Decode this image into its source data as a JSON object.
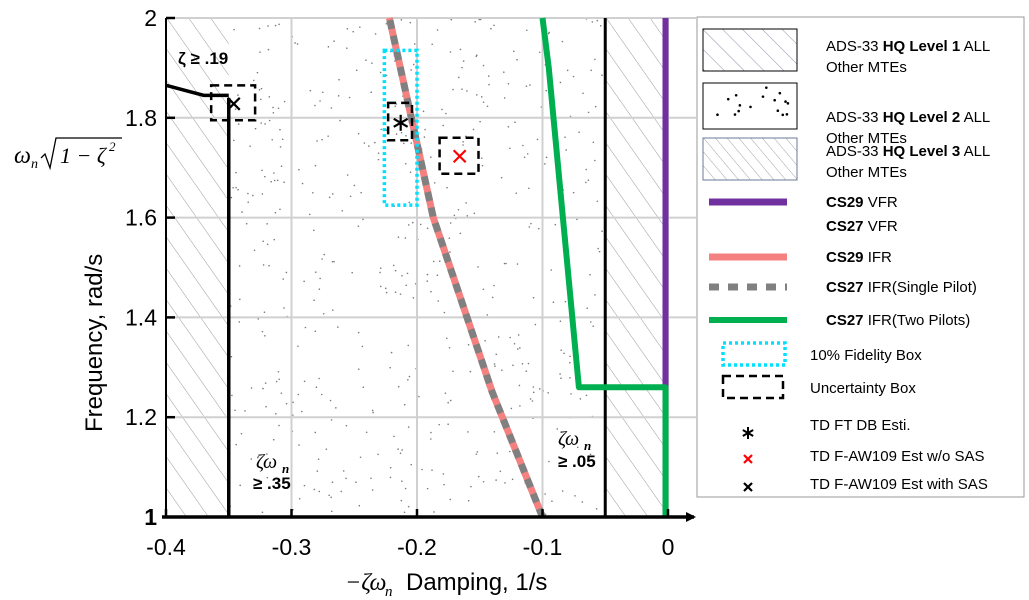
{
  "chart_data": {
    "type": "line",
    "xlabel_math": "−ζω",
    "xlabel_math_sub": "n",
    "xlabel": "Damping, 1/s",
    "ylabel": "Frequency, rad/s",
    "ylabel_math": "ω",
    "ylabel_math_sub": "n",
    "ylabel_math_rest": "1 − ζ",
    "ylabel_math_sup": "2",
    "xlim": [
      -0.4,
      0
    ],
    "ylim": [
      1,
      2
    ],
    "x_ticks": [
      -0.4,
      -0.3,
      -0.2,
      -0.1,
      0
    ],
    "x_tick_labels": [
      "-0.4",
      "-0.3",
      "-0.2",
      "-0.1",
      "0"
    ],
    "y_ticks": [
      1,
      1.2,
      1.4,
      1.6,
      1.8,
      2
    ],
    "y_tick_labels": [
      "1",
      "1.2",
      "1.4",
      "1.6",
      "1.8",
      "2"
    ],
    "grid": true,
    "regions": [
      {
        "name": "ADS-33 HQ Level 3",
        "x": [
          -0.4,
          -0.35
        ],
        "pattern": "hatch"
      },
      {
        "name": "ADS-33 HQ Level 2",
        "x": [
          -0.35,
          -0.05
        ],
        "pattern": "dots"
      },
      {
        "name": "ADS-33 HQ Level 3",
        "x": [
          -0.05,
          0
        ],
        "pattern": "hatch"
      }
    ],
    "series": [
      {
        "name": "CS29 VFR",
        "color": "#7030a0",
        "style": "solid",
        "x": [
          -0.002,
          -0.002
        ],
        "y": [
          1,
          2
        ]
      },
      {
        "name": "CS27 VFR",
        "color": "#7030a0",
        "style": "solid",
        "x": [],
        "y": []
      },
      {
        "name": "CS29 IFR",
        "color": "#f4807f",
        "style": "solid",
        "x": [
          -0.1,
          -0.14,
          -0.187,
          -0.222
        ],
        "y": [
          1,
          1.25,
          1.6,
          2.0
        ]
      },
      {
        "name": "CS27 IFR(Single Pilot)",
        "color": "#808080",
        "style": "dashed",
        "x": [
          -0.1,
          -0.14,
          -0.187,
          -0.222
        ],
        "y": [
          1,
          1.25,
          1.6,
          2.0
        ]
      },
      {
        "name": "CS27 IFR(Two Pilots)",
        "color": "#00b050",
        "style": "solid",
        "x": [
          -0.002,
          -0.002,
          -0.071,
          -0.071,
          -0.095,
          -0.1
        ],
        "y": [
          1,
          1.26,
          1.26,
          1.26,
          1.9,
          2.0
        ]
      }
    ],
    "boundaries": [
      {
        "x": [
          -0.05,
          -0.05
        ],
        "y": [
          1,
          2
        ]
      },
      {
        "x": [
          -0.35,
          -0.35
        ],
        "y": [
          1,
          1.84
        ]
      },
      {
        "x": [
          -0.4,
          -0.37,
          -0.35
        ],
        "y": [
          1.865,
          1.845,
          1.845
        ]
      }
    ],
    "boxes": [
      {
        "type": "fidelity",
        "x": [
          -0.226,
          -0.2
        ],
        "y": [
          1.625,
          1.935
        ]
      },
      {
        "type": "uncertainty",
        "x": [
          -0.223,
          -0.204
        ],
        "y": [
          1.755,
          1.83
        ]
      },
      {
        "type": "uncertainty",
        "x": [
          -0.182,
          -0.151
        ],
        "y": [
          1.688,
          1.76
        ]
      },
      {
        "type": "uncertainty",
        "x": [
          -0.364,
          -0.329
        ],
        "y": [
          1.795,
          1.865
        ]
      }
    ],
    "points": [
      {
        "label": "TD FT DB Esti.",
        "marker": "*",
        "color": "#000000",
        "x": -0.213,
        "y": 1.79
      },
      {
        "label": "TD F-AW109 Est w/o SAS",
        "marker": "x",
        "color": "#ff0000",
        "x": -0.166,
        "y": 1.723
      },
      {
        "label": "TD F-AW109 Est with SAS",
        "marker": "x",
        "color": "#000000",
        "x": -0.346,
        "y": 1.828
      }
    ],
    "annotations": {
      "zeta_min": "ζ ≥ .19",
      "zw_left_math": "ζω",
      "zw_left_sub": "n",
      "zw_left_val": "≥ .35",
      "zw_right_math": "ζω",
      "zw_right_sub": "n",
      "zw_right_val": "≥ .05"
    },
    "legend": {
      "placement": "right",
      "entries": [
        {
          "prefix": "ADS-33 ",
          "bold": "HQ Level 1",
          "suffix": " ALL",
          "line2": "Other MTEs",
          "symbol": "hatch-wide"
        },
        {
          "prefix": "ADS-33 ",
          "bold": "HQ Level 2",
          "suffix": " ALL",
          "line2": "Other MTEs",
          "symbol": "dots"
        },
        {
          "prefix": "ADS-33 ",
          "bold": "HQ Level 3",
          "suffix": " ALL",
          "line2": "Other MTEs",
          "symbol": "hatch-fine"
        },
        {
          "prefix": "",
          "bold": "CS29",
          "suffix": " VFR",
          "line2": "",
          "symbol": "purple"
        },
        {
          "prefix": "",
          "bold": "CS27",
          "suffix": " VFR",
          "line2": "",
          "symbol": "none"
        },
        {
          "prefix": "",
          "bold": "CS29",
          "suffix": " IFR",
          "line2": "",
          "symbol": "pink"
        },
        {
          "prefix": "",
          "bold": "CS27",
          "suffix": " IFR(Single Pilot)",
          "line2": "",
          "symbol": "grey-dash"
        },
        {
          "prefix": "",
          "bold": "CS27",
          "suffix": " IFR(Two Pilots)",
          "line2": "",
          "symbol": "green"
        },
        {
          "prefix": "",
          "bold": "",
          "suffix": "10% Fidelity Box",
          "line2": "",
          "symbol": "cyan-box"
        },
        {
          "prefix": "",
          "bold": "",
          "suffix": "Uncertainty Box",
          "line2": "",
          "symbol": "black-box"
        },
        {
          "prefix": "",
          "bold": "",
          "suffix": "TD FT DB Esti.",
          "line2": "",
          "symbol": "star"
        },
        {
          "prefix": "",
          "bold": "",
          "suffix": "TD F-AW109 Est w/o SAS",
          "line2": "",
          "symbol": "red-x"
        },
        {
          "prefix": "",
          "bold": "",
          "suffix": "TD F-AW109 Est with SAS",
          "line2": "",
          "symbol": "black-x"
        }
      ]
    },
    "colors": {
      "purple": "#7030a0",
      "pink": "#f4807f",
      "grey": "#808080",
      "green": "#00b050",
      "cyan": "#00e0ff",
      "red": "#ff0000"
    }
  }
}
